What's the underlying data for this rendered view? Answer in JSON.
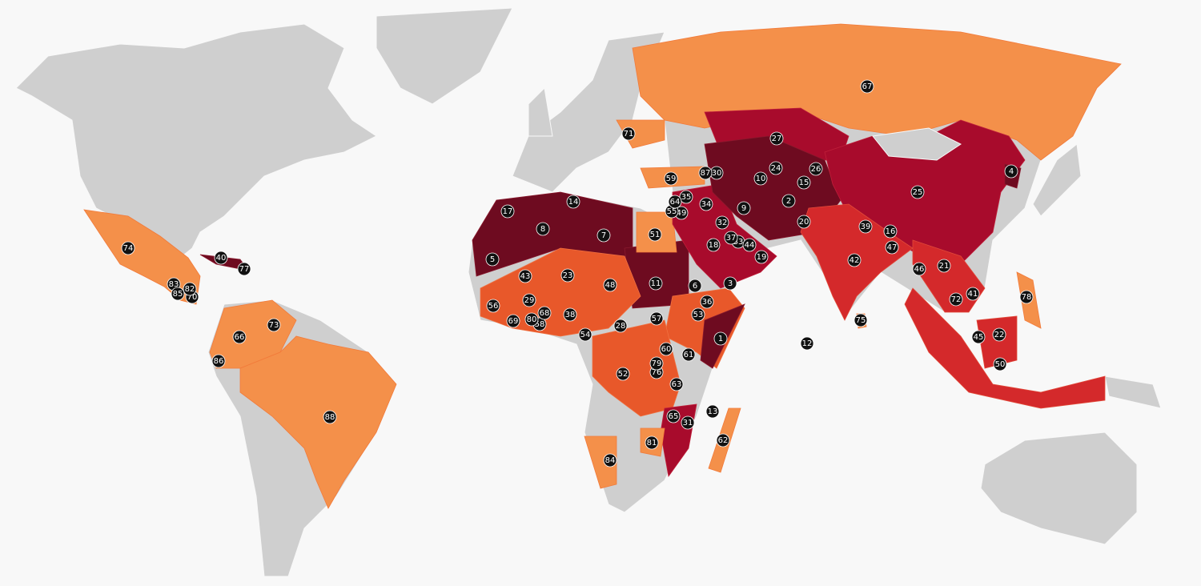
{
  "markers": [
    1,
    2,
    3,
    4,
    5,
    6,
    7,
    8,
    9,
    10,
    11,
    12,
    13,
    14,
    15,
    16,
    17,
    18,
    19,
    20,
    21,
    22,
    23,
    24,
    25,
    26,
    27,
    28,
    29,
    30,
    31,
    32,
    33,
    34,
    35,
    36,
    37,
    38,
    39,
    40,
    41,
    42,
    43,
    44,
    45,
    46,
    47,
    48,
    49,
    50,
    51,
    52,
    53,
    54,
    55,
    56,
    57,
    58,
    59,
    60,
    61,
    62,
    63,
    64,
    65,
    66,
    67,
    68,
    69,
    70,
    71,
    72,
    73,
    74,
    75,
    76,
    77,
    78,
    79,
    80,
    81,
    82,
    83,
    84,
    85,
    86,
    87,
    88
  ]
}
